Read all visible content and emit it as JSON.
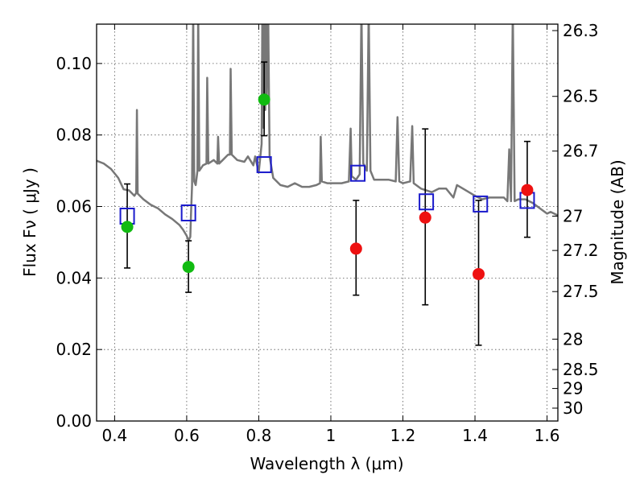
{
  "chart_data": {
    "type": "scatter",
    "xlabel": "Wavelength  λ (μm)",
    "ylabel": "Flux  Fν  ( μJy )",
    "ylabel_right": "Magnitude (AB)",
    "xlim": [
      0.35,
      1.63
    ],
    "ylim": [
      0.0,
      0.111
    ],
    "grid": true,
    "x_ticks": [
      0.4,
      0.6,
      0.8,
      1.0,
      1.2,
      1.4,
      1.6
    ],
    "x_tick_labels": [
      "0.4",
      "0.6",
      "0.8",
      "1",
      "1.2",
      "1.4",
      "1.6"
    ],
    "y_ticks": [
      0.0,
      0.02,
      0.04,
      0.06,
      0.08,
      0.1
    ],
    "y_tick_labels": [
      "0.00",
      "0.02",
      "0.04",
      "0.06",
      "0.08",
      "0.10"
    ],
    "right_ticks": [
      {
        "label": "26.3",
        "flux": 0.1092
      },
      {
        "label": "26.5",
        "flux": 0.0908
      },
      {
        "label": "26.7",
        "flux": 0.0755
      },
      {
        "label": "27",
        "flux": 0.0573
      },
      {
        "label": "27.2",
        "flux": 0.0477
      },
      {
        "label": "27.5",
        "flux": 0.0362
      },
      {
        "label": "28",
        "flux": 0.0229
      },
      {
        "label": "28.5",
        "flux": 0.0144
      },
      {
        "label": "29",
        "flux": 0.0091
      },
      {
        "label": "30",
        "flux": 0.0036
      }
    ],
    "series": [
      {
        "color": "#777777",
        "points": [
          [
            0.35,
            0.0728
          ],
          [
            0.37,
            0.072
          ],
          [
            0.39,
            0.0705
          ],
          [
            0.41,
            0.068
          ],
          [
            0.425,
            0.0648
          ],
          [
            0.44,
            0.0645
          ],
          [
            0.455,
            0.063
          ],
          [
            0.46,
            0.0638
          ],
          [
            0.462,
            0.087
          ],
          [
            0.464,
            0.0636
          ],
          [
            0.48,
            0.062
          ],
          [
            0.5,
            0.0605
          ],
          [
            0.52,
            0.0595
          ],
          [
            0.54,
            0.0578
          ],
          [
            0.56,
            0.0565
          ],
          [
            0.58,
            0.0548
          ],
          [
            0.59,
            0.0535
          ],
          [
            0.6,
            0.0518
          ],
          [
            0.605,
            0.0505
          ],
          [
            0.61,
            0.0515
          ],
          [
            0.612,
            0.058
          ],
          [
            0.615,
            0.066
          ],
          [
            0.618,
            0.115
          ],
          [
            0.621,
            0.067
          ],
          [
            0.625,
            0.066
          ],
          [
            0.63,
            0.07
          ],
          [
            0.632,
            0.115
          ],
          [
            0.635,
            0.07
          ],
          [
            0.645,
            0.0715
          ],
          [
            0.655,
            0.072
          ],
          [
            0.657,
            0.096
          ],
          [
            0.66,
            0.072
          ],
          [
            0.675,
            0.073
          ],
          [
            0.685,
            0.072
          ],
          [
            0.687,
            0.0795
          ],
          [
            0.69,
            0.072
          ],
          [
            0.7,
            0.073
          ],
          [
            0.71,
            0.074
          ],
          [
            0.715,
            0.0745
          ],
          [
            0.72,
            0.0745
          ],
          [
            0.722,
            0.0985
          ],
          [
            0.725,
            0.0745
          ],
          [
            0.74,
            0.073
          ],
          [
            0.76,
            0.0725
          ],
          [
            0.77,
            0.074
          ],
          [
            0.785,
            0.0715
          ],
          [
            0.79,
            0.074
          ],
          [
            0.8,
            0.0695
          ],
          [
            0.808,
            0.0775
          ],
          [
            0.81,
            0.115
          ],
          [
            0.813,
            0.082
          ],
          [
            0.816,
            0.115
          ],
          [
            0.818,
            0.087
          ],
          [
            0.82,
            0.115
          ],
          [
            0.822,
            0.09
          ],
          [
            0.826,
            0.115
          ],
          [
            0.83,
            0.074
          ],
          [
            0.84,
            0.068
          ],
          [
            0.86,
            0.066
          ],
          [
            0.88,
            0.0655
          ],
          [
            0.9,
            0.0665
          ],
          [
            0.92,
            0.0655
          ],
          [
            0.94,
            0.0655
          ],
          [
            0.96,
            0.066
          ],
          [
            0.97,
            0.0665
          ],
          [
            0.972,
            0.0795
          ],
          [
            0.975,
            0.067
          ],
          [
            0.99,
            0.0665
          ],
          [
            1.01,
            0.0665
          ],
          [
            1.03,
            0.0665
          ],
          [
            1.05,
            0.067
          ],
          [
            1.055,
            0.0818
          ],
          [
            1.058,
            0.0685
          ],
          [
            1.07,
            0.0675
          ],
          [
            1.08,
            0.069
          ],
          [
            1.085,
            0.115
          ],
          [
            1.09,
            0.072
          ],
          [
            1.1,
            0.07
          ],
          [
            1.105,
            0.115
          ],
          [
            1.11,
            0.07
          ],
          [
            1.12,
            0.0675
          ],
          [
            1.14,
            0.0675
          ],
          [
            1.16,
            0.0675
          ],
          [
            1.18,
            0.067
          ],
          [
            1.185,
            0.085
          ],
          [
            1.19,
            0.067
          ],
          [
            1.2,
            0.0665
          ],
          [
            1.22,
            0.067
          ],
          [
            1.226,
            0.0825
          ],
          [
            1.23,
            0.0665
          ],
          [
            1.25,
            0.065
          ],
          [
            1.28,
            0.064
          ],
          [
            1.3,
            0.065
          ],
          [
            1.32,
            0.065
          ],
          [
            1.34,
            0.0625
          ],
          [
            1.35,
            0.066
          ],
          [
            1.37,
            0.0648
          ],
          [
            1.4,
            0.063
          ],
          [
            1.42,
            0.062
          ],
          [
            1.44,
            0.0625
          ],
          [
            1.46,
            0.0625
          ],
          [
            1.48,
            0.0625
          ],
          [
            1.49,
            0.0615
          ],
          [
            1.495,
            0.076
          ],
          [
            1.5,
            0.0615
          ],
          [
            1.505,
            0.115
          ],
          [
            1.51,
            0.0615
          ],
          [
            1.52,
            0.062
          ],
          [
            1.54,
            0.062
          ],
          [
            1.56,
            0.061
          ],
          [
            1.58,
            0.0595
          ],
          [
            1.6,
            0.058
          ],
          [
            1.61,
            0.0585
          ],
          [
            1.63,
            0.0575
          ]
        ]
      },
      {
        "color": "#1a1acc",
        "points": [
          {
            "x": 0.435,
            "y": 0.0573
          },
          {
            "x": 0.605,
            "y": 0.0582
          },
          {
            "x": 0.815,
            "y": 0.0717
          },
          {
            "x": 1.075,
            "y": 0.0693
          },
          {
            "x": 1.265,
            "y": 0.0613
          },
          {
            "x": 1.415,
            "y": 0.0607
          },
          {
            "x": 1.545,
            "y": 0.0617
          }
        ]
      },
      {
        "color": "#11bb11",
        "points": [
          {
            "x": 0.435,
            "y": 0.0543,
            "err_lo": 0.0428,
            "err_hi": 0.0663
          },
          {
            "x": 0.605,
            "y": 0.0431,
            "err_lo": 0.036,
            "err_hi": 0.0504
          },
          {
            "x": 0.815,
            "y": 0.0899,
            "err_lo": 0.0798,
            "err_hi": 0.1004
          }
        ]
      },
      {
        "color": "#ee1111",
        "points": [
          {
            "x": 1.07,
            "y": 0.0482,
            "err_lo": 0.0352,
            "err_hi": 0.0617
          },
          {
            "x": 1.262,
            "y": 0.0569,
            "err_lo": 0.0325,
            "err_hi": 0.0817
          },
          {
            "x": 1.41,
            "y": 0.0411,
            "err_lo": 0.0212,
            "err_hi": 0.0617
          },
          {
            "x": 1.545,
            "y": 0.0646,
            "err_lo": 0.0514,
            "err_hi": 0.0782
          }
        ]
      }
    ]
  }
}
